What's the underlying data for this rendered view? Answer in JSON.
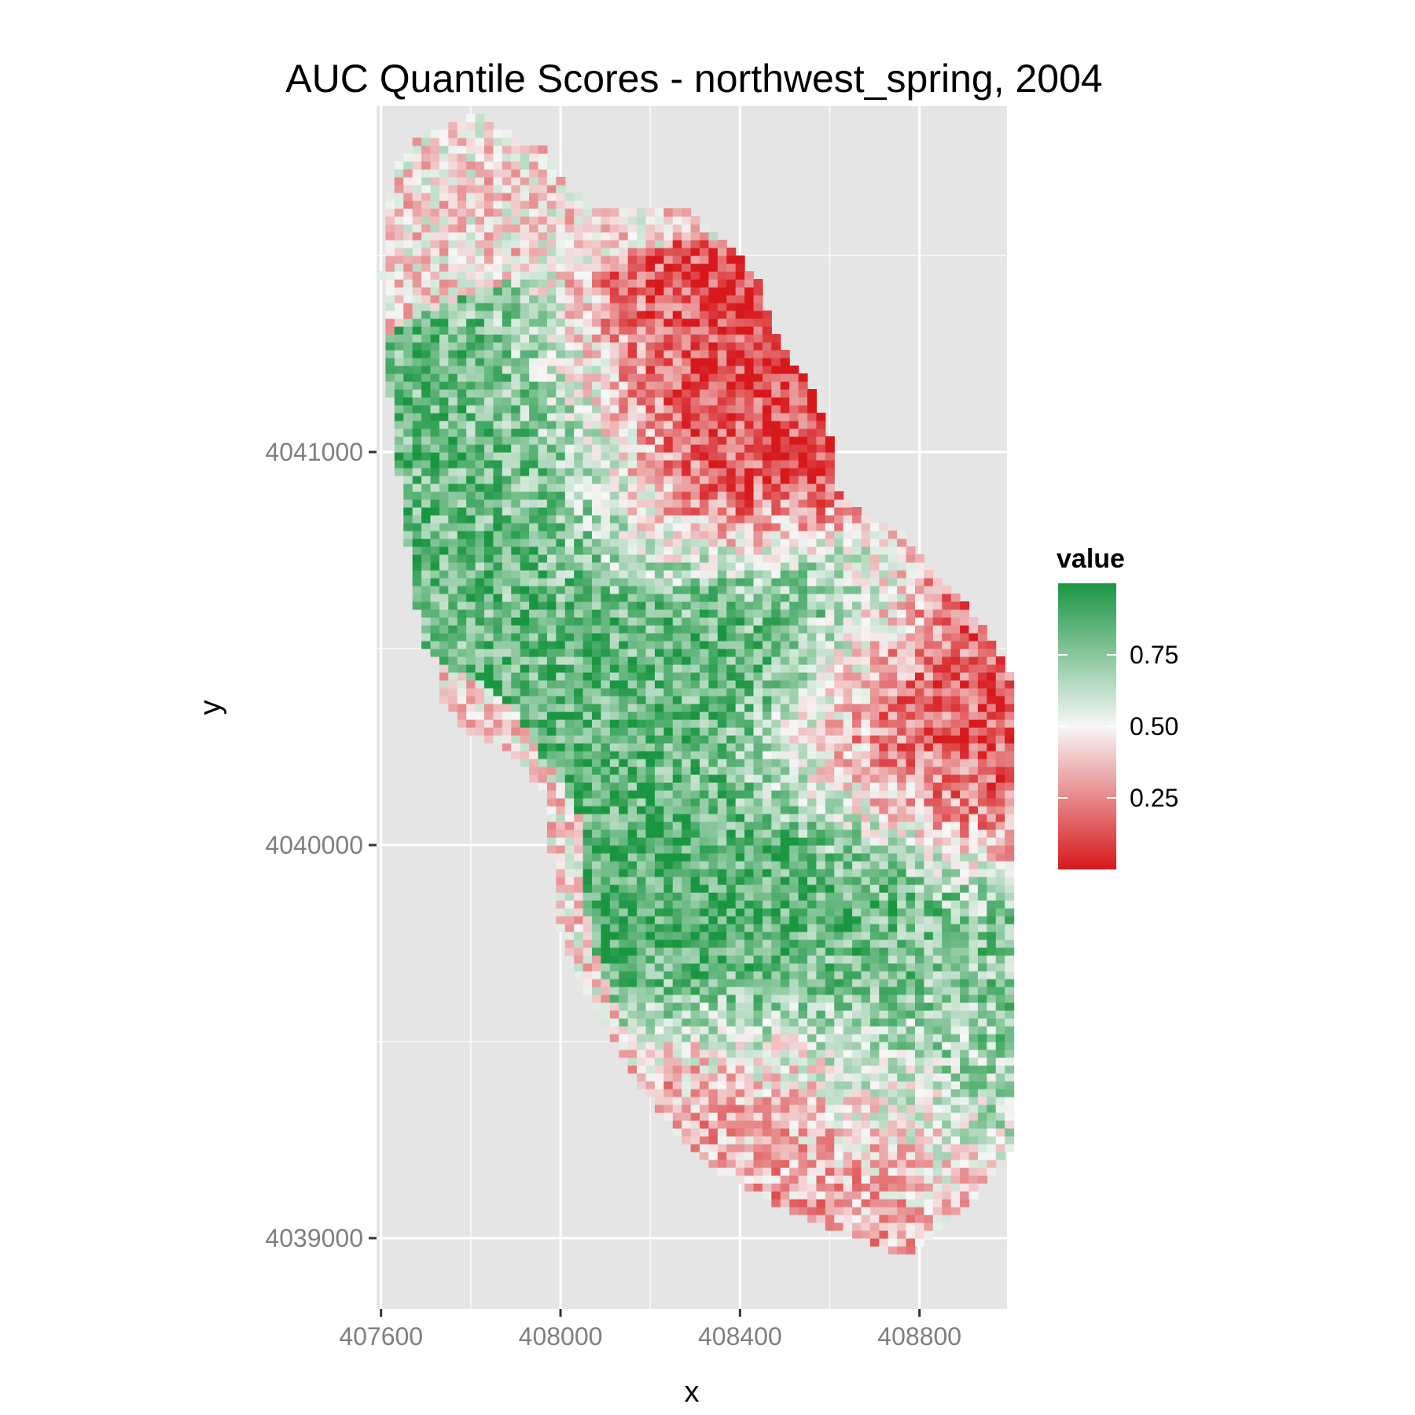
{
  "chart_data": {
    "type": "heatmap",
    "title": "AUC Quantile Scores - northwest_spring, 2004",
    "xlabel": "x",
    "ylabel": "y",
    "xlim": [
      407590,
      408995
    ],
    "ylim": [
      4038820,
      4041880
    ],
    "x_ticks": [
      407600,
      408000,
      408400,
      408800
    ],
    "x_tick_labels": [
      "407600",
      "408000",
      "408400",
      "408800"
    ],
    "y_ticks": [
      4039000,
      4040000,
      4041000
    ],
    "y_tick_labels": [
      "4039000",
      "4040000",
      "4041000"
    ],
    "grid": true,
    "legend": {
      "title": "value",
      "position": "right",
      "breaks": [
        0.25,
        0.5,
        0.75
      ],
      "labels": [
        "0.25",
        "0.50",
        "0.75"
      ],
      "range": [
        0,
        1
      ]
    },
    "colors": {
      "low": "#d7191c",
      "mid": "#f7f7f7",
      "high": "#1a9641",
      "panel_background": "#e5e5e5",
      "grid_line": "#ffffff"
    },
    "cell_size": 20,
    "regions": [
      {
        "name": "northwest-green-band",
        "x": 407955,
        "y": 4040920,
        "value": 0.82
      },
      {
        "name": "central-red-core",
        "x": 408330,
        "y": 4041030,
        "value": 0.1
      },
      {
        "name": "central-green-core",
        "x": 408400,
        "y": 4040480,
        "value": 0.85
      },
      {
        "name": "southeast-green-patch",
        "x": 408560,
        "y": 4039890,
        "value": 0.88
      },
      {
        "name": "southeast-red-streak",
        "x": 408790,
        "y": 4040280,
        "value": 0.15
      },
      {
        "name": "south-green-patch",
        "x": 408760,
        "y": 4039500,
        "value": 0.75
      },
      {
        "name": "south-red-patch",
        "x": 408600,
        "y": 4039250,
        "value": 0.3
      }
    ]
  }
}
